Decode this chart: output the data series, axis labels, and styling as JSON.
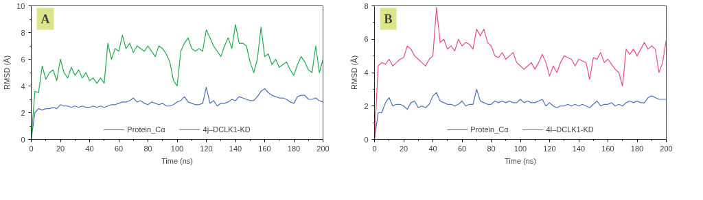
{
  "chart_data": [
    {
      "type": "line",
      "annotations": [
        "A"
      ],
      "xlabel": "Time (ns)",
      "ylabel": "RMSD (Å)",
      "xlim": [
        0,
        200
      ],
      "ylim": [
        0,
        10
      ],
      "xticks": [
        0,
        20,
        40,
        60,
        80,
        100,
        120,
        140,
        160,
        180,
        200
      ],
      "yticks": [
        0,
        2,
        4,
        6,
        8,
        10
      ],
      "grid": false,
      "legend": "bottom",
      "x": [
        0,
        2.5,
        5,
        7.5,
        10,
        12.5,
        15,
        17.5,
        20,
        22.5,
        25,
        27.5,
        30,
        32.5,
        35,
        37.5,
        40,
        42.5,
        45,
        47.5,
        50,
        52.5,
        55,
        57.5,
        60,
        62.5,
        65,
        67.5,
        70,
        72.5,
        75,
        77.5,
        80,
        82.5,
        85,
        87.5,
        90,
        92.5,
        95,
        97.5,
        100,
        102.5,
        105,
        107.5,
        110,
        112.5,
        115,
        117.5,
        120,
        122.5,
        125,
        127.5,
        130,
        132.5,
        135,
        137.5,
        140,
        142.5,
        145,
        147.5,
        150,
        152.5,
        155,
        157.5,
        160,
        162.5,
        165,
        167.5,
        170,
        172.5,
        175,
        177.5,
        180,
        182.5,
        185,
        187.5,
        190,
        192.5,
        195,
        197.5,
        200
      ],
      "series": [
        {
          "name": "Protein_Cα",
          "color": "#4a6fb5",
          "values": [
            0,
            2.0,
            2.3,
            2.2,
            2.3,
            2.3,
            2.4,
            2.3,
            2.6,
            2.5,
            2.5,
            2.4,
            2.5,
            2.4,
            2.5,
            2.4,
            2.4,
            2.5,
            2.4,
            2.5,
            2.4,
            2.5,
            2.6,
            2.6,
            2.7,
            2.8,
            2.8,
            2.9,
            3.1,
            2.8,
            2.9,
            2.7,
            2.6,
            2.8,
            2.7,
            2.6,
            2.7,
            2.5,
            2.5,
            2.6,
            2.8,
            2.9,
            3.2,
            2.8,
            2.7,
            2.6,
            2.6,
            2.7,
            3.9,
            2.7,
            2.9,
            2.5,
            2.7,
            2.7,
            2.8,
            3.0,
            2.9,
            3.2,
            3.1,
            3.0,
            2.9,
            2.9,
            3.2,
            3.6,
            3.8,
            3.5,
            3.3,
            3.2,
            3.1,
            3.1,
            3.0,
            2.8,
            2.7,
            3.2,
            3.3,
            3.3,
            3.0,
            3.0,
            3.1,
            2.9,
            2.8
          ]
        },
        {
          "name": "4j–DCLK1-KD",
          "color": "#22a84f",
          "values": [
            0,
            3.6,
            3.5,
            5.5,
            4.5,
            5.0,
            5.2,
            4.4,
            6.0,
            5.0,
            4.6,
            5.4,
            4.8,
            5.2,
            4.6,
            5.0,
            4.4,
            4.6,
            4.2,
            4.6,
            4.2,
            7.2,
            6.0,
            6.8,
            6.6,
            7.8,
            6.8,
            7.2,
            6.5,
            7.0,
            6.8,
            6.6,
            7.0,
            6.6,
            6.2,
            7.0,
            6.8,
            6.4,
            5.8,
            4.4,
            4.0,
            6.6,
            7.2,
            7.6,
            6.8,
            6.6,
            6.8,
            6.6,
            8.2,
            7.6,
            7.0,
            6.6,
            6.2,
            7.0,
            7.6,
            6.8,
            8.6,
            7.2,
            7.2,
            7.0,
            5.8,
            5.0,
            6.0,
            8.4,
            6.2,
            6.4,
            5.6,
            6.0,
            5.4,
            5.6,
            5.8,
            5.2,
            4.8,
            5.6,
            6.2,
            5.8,
            5.2,
            5.0,
            7.0,
            5.0,
            6.0
          ]
        }
      ]
    },
    {
      "type": "line",
      "annotations": [
        "B"
      ],
      "xlabel": "Time (ns)",
      "ylabel": "RMSD (Å)",
      "xlim": [
        0,
        200
      ],
      "ylim": [
        0,
        8
      ],
      "xticks": [
        0,
        20,
        40,
        60,
        80,
        100,
        120,
        140,
        160,
        180,
        200
      ],
      "yticks": [
        0,
        2,
        4,
        6,
        8
      ],
      "grid": false,
      "legend": "bottom",
      "x": [
        0,
        2.5,
        5,
        7.5,
        10,
        12.5,
        15,
        17.5,
        20,
        22.5,
        25,
        27.5,
        30,
        32.5,
        35,
        37.5,
        40,
        42.5,
        45,
        47.5,
        50,
        52.5,
        55,
        57.5,
        60,
        62.5,
        65,
        67.5,
        70,
        72.5,
        75,
        77.5,
        80,
        82.5,
        85,
        87.5,
        90,
        92.5,
        95,
        97.5,
        100,
        102.5,
        105,
        107.5,
        110,
        112.5,
        115,
        117.5,
        120,
        122.5,
        125,
        127.5,
        130,
        132.5,
        135,
        137.5,
        140,
        142.5,
        145,
        147.5,
        150,
        152.5,
        155,
        157.5,
        160,
        162.5,
        165,
        167.5,
        170,
        172.5,
        175,
        177.5,
        180,
        182.5,
        185,
        187.5,
        190,
        192.5,
        195,
        197.5,
        200
      ],
      "series": [
        {
          "name": "Protein_Cα",
          "color": "#4a6fb5",
          "values": [
            0,
            1.6,
            1.6,
            2.2,
            2.5,
            2.0,
            2.1,
            2.1,
            2.0,
            1.8,
            2.2,
            2.3,
            1.9,
            2.0,
            1.9,
            2.1,
            2.6,
            2.8,
            2.3,
            2.2,
            2.1,
            2.1,
            2.0,
            2.1,
            2.3,
            2.0,
            2.1,
            2.1,
            3.0,
            2.3,
            2.2,
            2.1,
            2.1,
            2.3,
            2.2,
            2.3,
            2.2,
            2.3,
            2.2,
            2.2,
            2.4,
            2.2,
            2.3,
            2.2,
            2.2,
            2.3,
            2.4,
            2.0,
            2.2,
            2.0,
            1.9,
            2.0,
            2.0,
            2.1,
            2.0,
            2.1,
            2.0,
            2.1,
            2.0,
            1.9,
            2.1,
            2.3,
            2.0,
            2.1,
            2.1,
            2.2,
            2.0,
            2.1,
            2.0,
            2.2,
            2.3,
            2.2,
            2.3,
            2.2,
            2.2,
            2.5,
            2.6,
            2.5,
            2.4,
            2.4,
            2.4
          ]
        },
        {
          "name": "4l–DCLK1-KD",
          "color": "#e8488a",
          "values": [
            0,
            4.4,
            4.6,
            4.5,
            4.8,
            4.4,
            4.6,
            4.8,
            4.9,
            5.6,
            5.4,
            5.0,
            4.8,
            4.6,
            4.4,
            4.8,
            5.0,
            7.9,
            5.8,
            6.0,
            5.4,
            5.6,
            5.3,
            6.0,
            5.6,
            5.8,
            5.7,
            5.4,
            6.6,
            6.2,
            6.6,
            5.8,
            5.6,
            5.0,
            4.9,
            5.2,
            4.8,
            5.0,
            5.2,
            4.6,
            4.4,
            4.2,
            4.4,
            4.6,
            4.2,
            4.6,
            5.1,
            4.6,
            3.8,
            4.4,
            4.0,
            4.6,
            5.0,
            4.9,
            4.8,
            4.4,
            4.8,
            4.7,
            4.6,
            3.6,
            4.9,
            4.8,
            5.2,
            4.6,
            4.8,
            4.5,
            4.2,
            4.0,
            3.2,
            5.4,
            5.1,
            5.4,
            5.0,
            5.4,
            5.8,
            5.4,
            5.6,
            5.4,
            4.0,
            4.6,
            6.0
          ]
        }
      ]
    }
  ]
}
